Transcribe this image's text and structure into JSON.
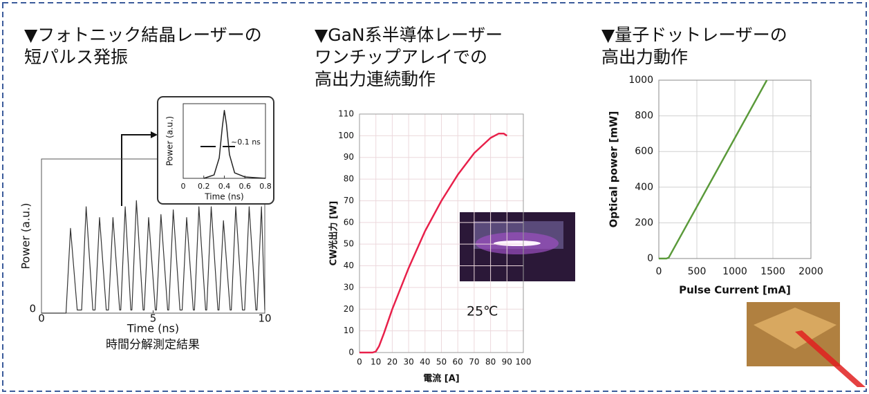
{
  "chart_data": [
    {
      "type": "line",
      "title": [
        "▼フォトニック結晶レーザーの",
        "短パルス発振"
      ],
      "x_label": "Time (ns)",
      "y_label": "Power (a.u.)",
      "caption": "時間分解測定結果",
      "xlim": [
        0,
        10
      ],
      "xticks": [
        0,
        5,
        10
      ],
      "ylim": [
        0,
        1
      ],
      "yticks": [
        0
      ],
      "x": [
        0,
        1.1,
        1.3,
        1.6,
        1.8,
        2.0,
        2.3,
        2.4,
        2.6,
        2.9,
        3.0,
        3.2,
        3.5,
        3.55,
        3.75,
        4.0,
        4.05,
        4.25,
        4.55,
        4.6,
        4.8,
        5.1,
        5.15,
        5.35,
        5.65,
        5.7,
        5.9,
        6.2,
        6.3,
        6.5,
        6.8,
        6.85,
        7.05,
        7.35,
        7.4,
        7.6,
        7.9,
        7.95,
        8.15,
        8.45,
        8.5,
        8.7,
        9.0,
        9.1,
        9.3,
        9.6,
        9.65,
        9.85,
        10
      ],
      "series": [
        {
          "color": "#333333",
          "values": [
            0,
            0,
            0.55,
            0.02,
            0.02,
            0.69,
            0.02,
            0.02,
            0.62,
            0.02,
            0.02,
            0.62,
            0.02,
            0.02,
            0.69,
            0.02,
            0.02,
            0.73,
            0.02,
            0.02,
            0.62,
            0.02,
            0.02,
            0.64,
            0.02,
            0.02,
            0.67,
            0.02,
            0.02,
            0.62,
            0.02,
            0.02,
            0.69,
            0.02,
            0.02,
            0.69,
            0.02,
            0.02,
            0.6,
            0.02,
            0.02,
            0.69,
            0.02,
            0.02,
            0.69,
            0.02,
            0.02,
            0.69,
            0.02
          ]
        }
      ],
      "inset": {
        "type": "line",
        "x_label": "Time (ns)",
        "y_label": "Power (a.u.)",
        "annotation": "~0.1 ns",
        "xlim": [
          0,
          0.8
        ],
        "xticks": [
          0,
          0.2,
          0.4,
          0.6,
          0.8
        ],
        "ylim": [
          0,
          1.1
        ],
        "x": [
          0.2,
          0.3,
          0.35,
          0.38,
          0.4,
          0.42,
          0.45,
          0.5,
          0.6,
          0.8
        ],
        "series": [
          {
            "color": "#222222",
            "values": [
              0,
              0.05,
              0.3,
              0.75,
              1.0,
              0.8,
              0.35,
              0.08,
              0.02,
              0
            ]
          }
        ]
      }
    },
    {
      "type": "line",
      "title": [
        "▼GaN系半導体レーザー",
        "ワンチップアレイでの",
        "高出力連続動作"
      ],
      "x_label": "電流 [A]",
      "y_label": "CW光出力 [W]",
      "annotation": "25℃",
      "grid": true,
      "xlim": [
        0,
        100
      ],
      "xticks": [
        0,
        10,
        20,
        30,
        40,
        50,
        60,
        70,
        80,
        90,
        100
      ],
      "ylim": [
        0,
        110
      ],
      "yticks": [
        0,
        10,
        20,
        30,
        40,
        50,
        60,
        70,
        80,
        90,
        100,
        110
      ],
      "x": [
        0,
        8,
        10,
        12,
        15,
        20,
        30,
        40,
        50,
        60,
        70,
        80,
        85,
        88,
        90
      ],
      "series": [
        {
          "color": "#e8204a",
          "values": [
            0,
            0,
            0.5,
            3,
            9,
            20,
            39,
            56,
            70,
            82,
            92,
            99,
            101,
            101,
            100
          ]
        }
      ]
    },
    {
      "type": "line",
      "title": [
        "▼量子ドットレーザーの",
        "高出力動作"
      ],
      "x_label": "Pulse Current [mA]",
      "y_label": "Optical power [mW]",
      "grid": true,
      "xlim": [
        0,
        2000
      ],
      "xticks": [
        0,
        500,
        1000,
        1500,
        2000
      ],
      "ylim": [
        0,
        1000
      ],
      "yticks": [
        0,
        200,
        400,
        600,
        800,
        1000
      ],
      "x": [
        0,
        100,
        130,
        1420
      ],
      "series": [
        {
          "color": "#5a9a3a",
          "values": [
            0,
            0,
            5,
            1000
          ]
        }
      ]
    }
  ]
}
